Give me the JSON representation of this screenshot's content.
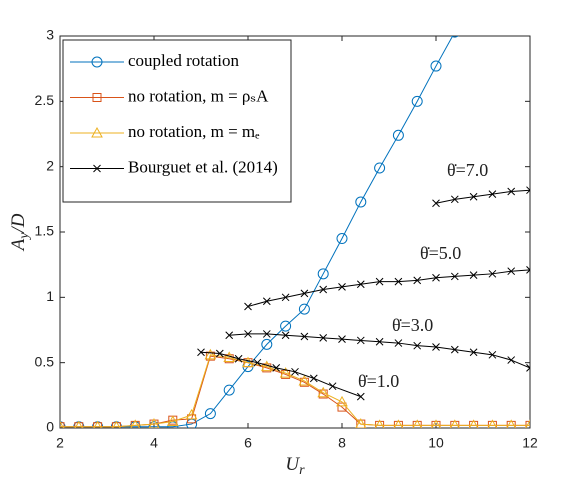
{
  "chart_data": {
    "type": "line",
    "xlabel": {
      "base": "U",
      "sub": "r"
    },
    "ylabel": {
      "base": "A",
      "sub": "y",
      "rest": "/D"
    },
    "xlim": [
      2,
      12
    ],
    "xticks": [
      2,
      4,
      6,
      8,
      10,
      12
    ],
    "ylim": [
      0,
      3
    ],
    "yticks": [
      0,
      0.5,
      1,
      1.5,
      2,
      2.5,
      3
    ],
    "grid": false,
    "legend": "upper left",
    "series": [
      {
        "name": "coupled rotation",
        "color": "#0072BD",
        "marker": "circle",
        "x": [
          2,
          2.4,
          2.8,
          3.2,
          3.6,
          4.0,
          4.4,
          4.8,
          5.2,
          5.6,
          6.0,
          6.4,
          6.8,
          7.2,
          7.6,
          8.0,
          8.4,
          8.8,
          9.2,
          9.6,
          10.0,
          10.4
        ],
        "values": [
          0.01,
          0.01,
          0.01,
          0.01,
          0.01,
          0.01,
          0.01,
          0.03,
          0.11,
          0.29,
          0.47,
          0.64,
          0.78,
          0.91,
          1.18,
          1.45,
          1.73,
          1.99,
          2.24,
          2.5,
          2.77,
          3.03
        ]
      },
      {
        "name": "no rotation, m = ρₛA",
        "color": "#D95319",
        "marker": "square",
        "x": [
          2,
          2.4,
          2.8,
          3.2,
          3.6,
          4.0,
          4.4,
          4.8,
          5.2,
          5.6,
          6.0,
          6.4,
          6.8,
          7.2,
          7.6,
          8.0,
          8.4,
          8.8,
          9.2,
          9.6,
          10.0,
          10.4,
          10.8,
          11.2,
          11.6,
          12.0
        ],
        "values": [
          0.01,
          0.01,
          0.01,
          0.01,
          0.02,
          0.03,
          0.06,
          0.07,
          0.55,
          0.53,
          0.5,
          0.46,
          0.41,
          0.35,
          0.26,
          0.16,
          0.03,
          0.02,
          0.02,
          0.02,
          0.02,
          0.02,
          0.02,
          0.02,
          0.02,
          0.02
        ]
      },
      {
        "name": "no rotation, m = mₑ",
        "color": "#EDB120",
        "marker": "triangle",
        "x": [
          2,
          2.4,
          2.8,
          3.2,
          3.6,
          4.0,
          4.4,
          4.8,
          5.2,
          5.6,
          6.0,
          6.4,
          6.8,
          7.2,
          7.6,
          8.0,
          8.4,
          8.8,
          9.2,
          9.6,
          10.0,
          10.4,
          10.8,
          11.2,
          11.6,
          12.0
        ],
        "values": [
          0.01,
          0.01,
          0.01,
          0.01,
          0.02,
          0.03,
          0.05,
          0.1,
          0.56,
          0.54,
          0.5,
          0.47,
          0.42,
          0.36,
          0.27,
          0.2,
          0.03,
          0.02,
          0.02,
          0.02,
          0.02,
          0.02,
          0.02,
          0.02,
          0.02,
          0.02
        ]
      },
      {
        "name": "Bourguet et al. (2014)",
        "color": "#000000",
        "marker": "x",
        "x": [
          5.0,
          5.4,
          5.8,
          6.2,
          6.6,
          7.0,
          7.4,
          7.8,
          8.4,
          null,
          5.6,
          6.0,
          6.4,
          6.8,
          7.2,
          7.6,
          8.0,
          8.4,
          8.8,
          9.2,
          9.6,
          10.0,
          10.4,
          10.8,
          11.2,
          11.6,
          12.0,
          null,
          6.0,
          6.4,
          6.8,
          7.2,
          7.6,
          8.0,
          8.4,
          8.8,
          9.2,
          9.6,
          10.0,
          10.4,
          10.8,
          11.2,
          11.6,
          12.0,
          null,
          10.0,
          10.4,
          10.8,
          11.2,
          11.6,
          12.0
        ],
        "values": [
          0.58,
          0.57,
          0.53,
          0.5,
          0.46,
          0.43,
          0.38,
          0.32,
          0.24,
          null,
          0.71,
          0.72,
          0.72,
          0.71,
          0.7,
          0.69,
          0.68,
          0.67,
          0.66,
          0.65,
          0.63,
          0.62,
          0.6,
          0.58,
          0.56,
          0.52,
          0.46,
          null,
          0.93,
          0.97,
          1.0,
          1.03,
          1.06,
          1.08,
          1.1,
          1.12,
          1.12,
          1.13,
          1.15,
          1.16,
          1.17,
          1.18,
          1.2,
          1.21,
          null,
          1.72,
          1.75,
          1.77,
          1.79,
          1.81,
          1.82
        ]
      }
    ],
    "annotations": [
      "θ̇=7.0",
      "θ̇=5.0",
      "θ̇=3.0",
      "θ̇=1.0"
    ]
  }
}
